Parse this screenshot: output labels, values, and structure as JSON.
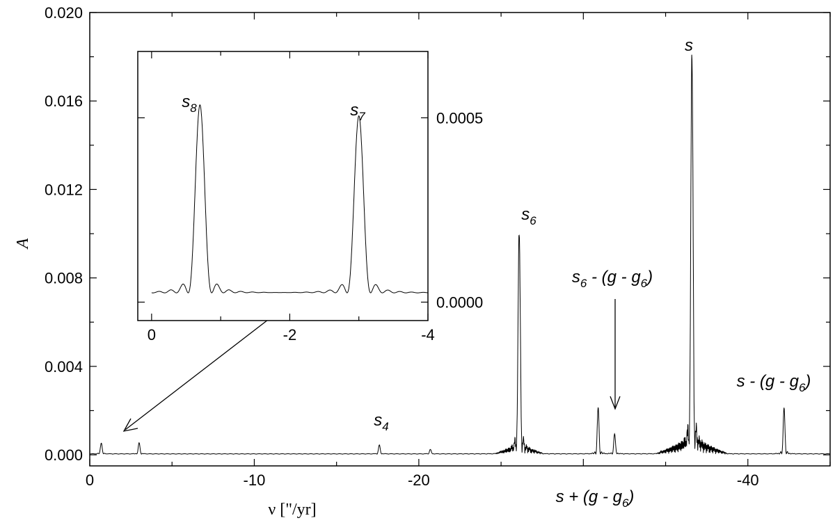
{
  "chart_data": [
    {
      "type": "line",
      "xlabel": "ν [\"/yr]",
      "ylabel": "A",
      "xlim": [
        0,
        -45
      ],
      "ylim": [
        -0.0005,
        0.02
      ],
      "x_ticks": [
        "0",
        "-10",
        "-20",
        "-40"
      ],
      "y_ticks": [
        "0.000",
        "0.004",
        "0.008",
        "0.012",
        "0.016",
        "0.020"
      ],
      "grid": false,
      "peaks": [
        {
          "x": -0.7,
          "y": 0.0005
        },
        {
          "x": -3.0,
          "y": 0.0005
        },
        {
          "x": -17.6,
          "y": 0.0004
        },
        {
          "x": -20.7,
          "y": 0.0002
        },
        {
          "x": -26.1,
          "y": 0.0098
        },
        {
          "x": -30.9,
          "y": 0.0021
        },
        {
          "x": -31.9,
          "y": 0.0009
        },
        {
          "x": -36.6,
          "y": 0.0176
        },
        {
          "x": -42.2,
          "y": 0.0021
        }
      ],
      "annotations": [
        {
          "base": "s",
          "sub": "4",
          "suffix": "",
          "x": -17.6
        },
        {
          "base": "s",
          "sub": "6",
          "suffix": "",
          "x": -26.1
        },
        {
          "base": "s",
          "sub": "6",
          "suffix": " - (g - g",
          "sub2": "6",
          "suffix2": ")",
          "x": -31.9
        },
        {
          "base": "s",
          "sub": "",
          "suffix": "",
          "x": -36.6
        },
        {
          "base": "s - (g - g",
          "sub": "6",
          "suffix": ")",
          "x": -42.2
        },
        {
          "base": "s + (g - g",
          "sub": "6",
          "suffix": ")",
          "x": -30.9
        }
      ]
    },
    {
      "type": "line",
      "inset": true,
      "xlim": [
        0.2,
        -4
      ],
      "ylim": [
        -5e-05,
        0.00068
      ],
      "x_ticks": [
        "0",
        "-2",
        "-4"
      ],
      "y_ticks": [
        "0.0000",
        "0.0005"
      ],
      "peaks": [
        {
          "x": -0.7,
          "y": 0.00051
        },
        {
          "x": -3.0,
          "y": 0.00048
        }
      ],
      "annotations": [
        {
          "base": "s",
          "sub": "8",
          "x": -0.7
        },
        {
          "base": "s",
          "sub": "7",
          "x": -3.0
        }
      ]
    }
  ],
  "texts": {
    "xlabel": "ν [\"/yr]",
    "ylabel": "A",
    "s4": "s",
    "s4_sub": "4",
    "s6": "s",
    "s6_sub": "6",
    "s6g_pre": "s",
    "s6g_sub": "6",
    "s6g_mid": " - (g - g",
    "s6g_sub2": "6",
    "s6g_end": ")",
    "s": "s",
    "smg_pre": "s - (g - g",
    "smg_sub": "6",
    "smg_end": ")",
    "spg_pre": "s + (g - g",
    "spg_sub": "6",
    "spg_end": ")",
    "s8": "s",
    "s8_sub": "8",
    "s7": "s",
    "s7_sub": "7"
  }
}
